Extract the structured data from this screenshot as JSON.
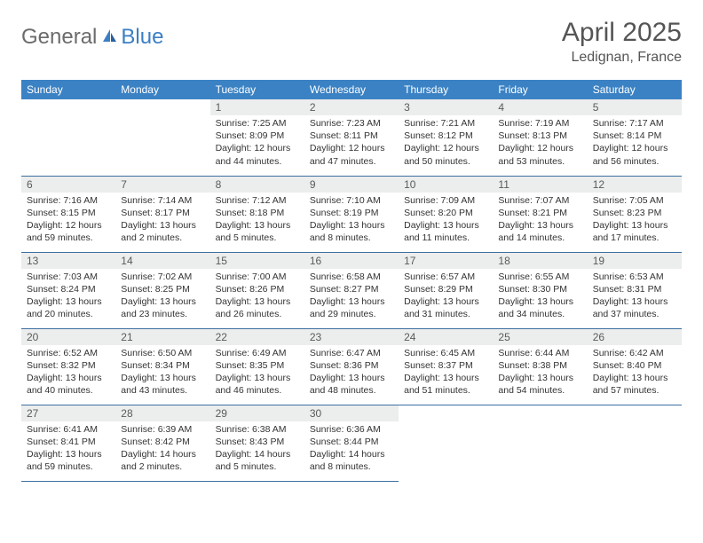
{
  "brand": {
    "text1": "General",
    "text2": "Blue"
  },
  "title": "April 2025",
  "location": "Ledignan, France",
  "colors": {
    "header_bg": "#3b82c4",
    "header_text": "#ffffff",
    "daynum_bg": "#eceded",
    "cell_border": "#3b6fa0",
    "logo_gray": "#6b6b6b",
    "logo_blue": "#3b7fc4"
  },
  "weekdays": [
    "Sunday",
    "Monday",
    "Tuesday",
    "Wednesday",
    "Thursday",
    "Friday",
    "Saturday"
  ],
  "weeks": [
    [
      null,
      null,
      {
        "n": "1",
        "sr": "7:25 AM",
        "ss": "8:09 PM",
        "dl": "12 hours and 44 minutes."
      },
      {
        "n": "2",
        "sr": "7:23 AM",
        "ss": "8:11 PM",
        "dl": "12 hours and 47 minutes."
      },
      {
        "n": "3",
        "sr": "7:21 AM",
        "ss": "8:12 PM",
        "dl": "12 hours and 50 minutes."
      },
      {
        "n": "4",
        "sr": "7:19 AM",
        "ss": "8:13 PM",
        "dl": "12 hours and 53 minutes."
      },
      {
        "n": "5",
        "sr": "7:17 AM",
        "ss": "8:14 PM",
        "dl": "12 hours and 56 minutes."
      }
    ],
    [
      {
        "n": "6",
        "sr": "7:16 AM",
        "ss": "8:15 PM",
        "dl": "12 hours and 59 minutes."
      },
      {
        "n": "7",
        "sr": "7:14 AM",
        "ss": "8:17 PM",
        "dl": "13 hours and 2 minutes."
      },
      {
        "n": "8",
        "sr": "7:12 AM",
        "ss": "8:18 PM",
        "dl": "13 hours and 5 minutes."
      },
      {
        "n": "9",
        "sr": "7:10 AM",
        "ss": "8:19 PM",
        "dl": "13 hours and 8 minutes."
      },
      {
        "n": "10",
        "sr": "7:09 AM",
        "ss": "8:20 PM",
        "dl": "13 hours and 11 minutes."
      },
      {
        "n": "11",
        "sr": "7:07 AM",
        "ss": "8:21 PM",
        "dl": "13 hours and 14 minutes."
      },
      {
        "n": "12",
        "sr": "7:05 AM",
        "ss": "8:23 PM",
        "dl": "13 hours and 17 minutes."
      }
    ],
    [
      {
        "n": "13",
        "sr": "7:03 AM",
        "ss": "8:24 PM",
        "dl": "13 hours and 20 minutes."
      },
      {
        "n": "14",
        "sr": "7:02 AM",
        "ss": "8:25 PM",
        "dl": "13 hours and 23 minutes."
      },
      {
        "n": "15",
        "sr": "7:00 AM",
        "ss": "8:26 PM",
        "dl": "13 hours and 26 minutes."
      },
      {
        "n": "16",
        "sr": "6:58 AM",
        "ss": "8:27 PM",
        "dl": "13 hours and 29 minutes."
      },
      {
        "n": "17",
        "sr": "6:57 AM",
        "ss": "8:29 PM",
        "dl": "13 hours and 31 minutes."
      },
      {
        "n": "18",
        "sr": "6:55 AM",
        "ss": "8:30 PM",
        "dl": "13 hours and 34 minutes."
      },
      {
        "n": "19",
        "sr": "6:53 AM",
        "ss": "8:31 PM",
        "dl": "13 hours and 37 minutes."
      }
    ],
    [
      {
        "n": "20",
        "sr": "6:52 AM",
        "ss": "8:32 PM",
        "dl": "13 hours and 40 minutes."
      },
      {
        "n": "21",
        "sr": "6:50 AM",
        "ss": "8:34 PM",
        "dl": "13 hours and 43 minutes."
      },
      {
        "n": "22",
        "sr": "6:49 AM",
        "ss": "8:35 PM",
        "dl": "13 hours and 46 minutes."
      },
      {
        "n": "23",
        "sr": "6:47 AM",
        "ss": "8:36 PM",
        "dl": "13 hours and 48 minutes."
      },
      {
        "n": "24",
        "sr": "6:45 AM",
        "ss": "8:37 PM",
        "dl": "13 hours and 51 minutes."
      },
      {
        "n": "25",
        "sr": "6:44 AM",
        "ss": "8:38 PM",
        "dl": "13 hours and 54 minutes."
      },
      {
        "n": "26",
        "sr": "6:42 AM",
        "ss": "8:40 PM",
        "dl": "13 hours and 57 minutes."
      }
    ],
    [
      {
        "n": "27",
        "sr": "6:41 AM",
        "ss": "8:41 PM",
        "dl": "13 hours and 59 minutes."
      },
      {
        "n": "28",
        "sr": "6:39 AM",
        "ss": "8:42 PM",
        "dl": "14 hours and 2 minutes."
      },
      {
        "n": "29",
        "sr": "6:38 AM",
        "ss": "8:43 PM",
        "dl": "14 hours and 5 minutes."
      },
      {
        "n": "30",
        "sr": "6:36 AM",
        "ss": "8:44 PM",
        "dl": "14 hours and 8 minutes."
      },
      null,
      null,
      null
    ]
  ],
  "labels": {
    "sunrise": "Sunrise: ",
    "sunset": "Sunset: ",
    "daylight": "Daylight: "
  }
}
